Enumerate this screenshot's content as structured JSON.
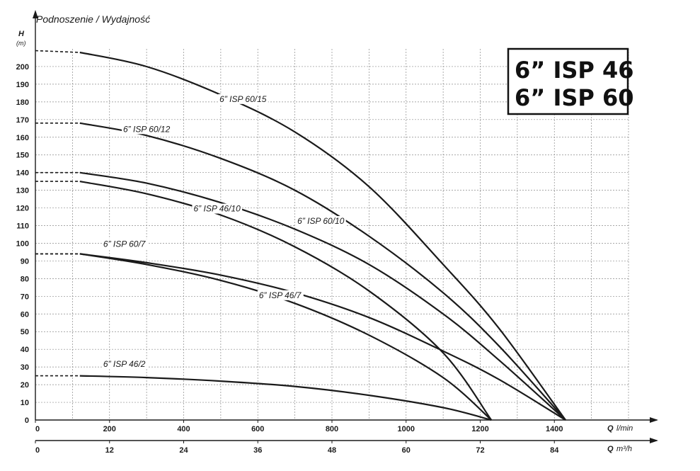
{
  "chart_data": {
    "type": "line",
    "title": "Podnoszenie / Wydajność",
    "ylabel": "H",
    "yunit": "(m)",
    "xlabel_primary": "Q",
    "xunit_primary": "l/min",
    "xlabel_secondary": "Q",
    "xunit_secondary": "m³/h",
    "xlim": [
      0,
      1600
    ],
    "ylim": [
      0,
      210
    ],
    "yticks": [
      "0",
      "10",
      "20",
      "30",
      "40",
      "50",
      "60",
      "70",
      "80",
      "90",
      "100",
      "110",
      "120",
      "130",
      "140",
      "150",
      "160",
      "170",
      "180",
      "190",
      "200"
    ],
    "xticks_primary": [
      "0",
      "200",
      "400",
      "600",
      "800",
      "1000",
      "1200",
      "1400"
    ],
    "xticks_secondary": [
      "0",
      "12",
      "24",
      "36",
      "48",
      "60",
      "72",
      "84"
    ],
    "grid": true,
    "models": [
      "6” ISP 46",
      "6” ISP 60"
    ],
    "series": [
      {
        "name": "6” ISP 60/15",
        "x": [
          0,
          120,
          300,
          500,
          700,
          900,
          1100,
          1250,
          1430
        ],
        "y": [
          209,
          208,
          200,
          184,
          163,
          132,
          88,
          52,
          0
        ],
        "label_x": 560,
        "label_y": 180
      },
      {
        "name": "6” ISP 60/12",
        "x": [
          0,
          120,
          300,
          500,
          700,
          900,
          1100,
          1250,
          1430
        ],
        "y": [
          168,
          168,
          161,
          148,
          130,
          104,
          72,
          42,
          0
        ],
        "label_x": 300,
        "label_y": 163
      },
      {
        "name": "6” ISP 60/10",
        "x": [
          0,
          120,
          300,
          500,
          700,
          900,
          1100,
          1250,
          1430
        ],
        "y": [
          140,
          140,
          134,
          123,
          108,
          88,
          60,
          34,
          0
        ],
        "label_x": 770,
        "label_y": 111
      },
      {
        "name": "6” ISP 60/7",
        "x": [
          0,
          120,
          300,
          500,
          700,
          900,
          1100,
          1250,
          1430
        ],
        "y": [
          94,
          94,
          89,
          82,
          72,
          58,
          39,
          23,
          0
        ],
        "label_x": 240,
        "label_y": 98
      },
      {
        "name": "6” ISP 46/10",
        "x": [
          0,
          120,
          300,
          500,
          700,
          900,
          1100,
          1230
        ],
        "y": [
          135,
          135,
          128,
          116,
          98,
          73,
          38,
          0
        ],
        "label_x": 490,
        "label_y": 118
      },
      {
        "name": "6” ISP 46/7",
        "x": [
          0,
          120,
          300,
          500,
          700,
          900,
          1100,
          1230
        ],
        "y": [
          94,
          94,
          88,
          79,
          66,
          48,
          24,
          0
        ],
        "label_x": 660,
        "label_y": 69
      },
      {
        "name": "6” ISP 46/2",
        "x": [
          0,
          120,
          300,
          500,
          700,
          900,
          1100,
          1230
        ],
        "y": [
          25,
          25,
          24,
          22,
          19,
          14,
          7,
          0
        ],
        "label_x": 240,
        "label_y": 30
      }
    ]
  }
}
